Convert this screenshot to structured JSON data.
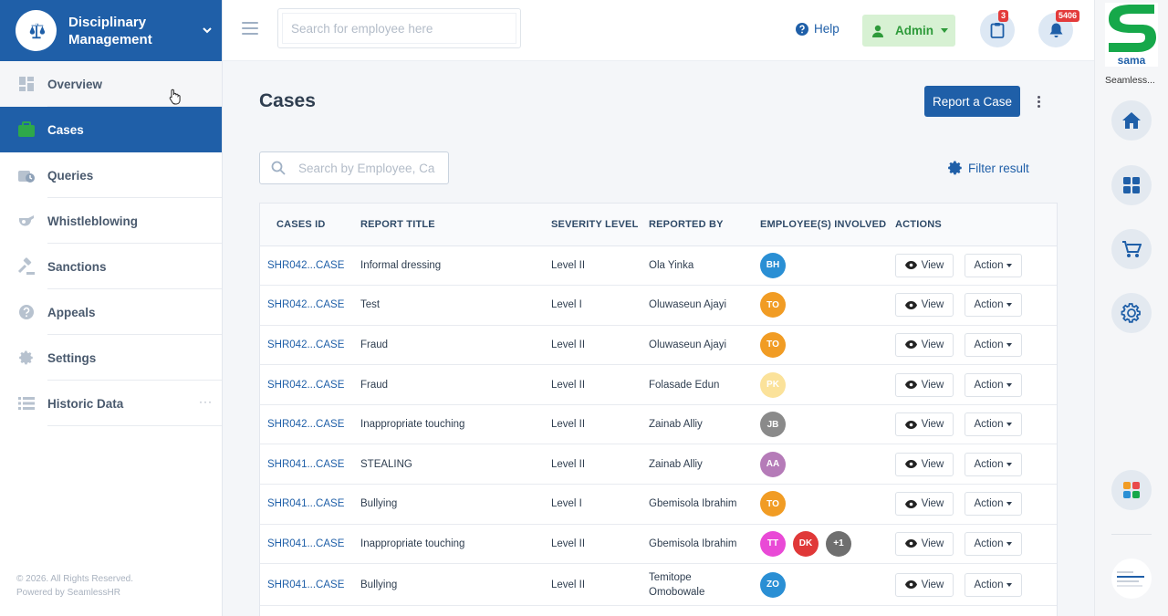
{
  "brand": {
    "title": "Disciplinary Management"
  },
  "nav": [
    {
      "label": "Overview",
      "icon": "dashboard-icon"
    },
    {
      "label": "Cases",
      "icon": "briefcase-icon"
    },
    {
      "label": "Queries",
      "icon": "query-icon"
    },
    {
      "label": "Whistleblowing",
      "icon": "whistle-icon"
    },
    {
      "label": "Sanctions",
      "icon": "gavel-icon"
    },
    {
      "label": "Appeals",
      "icon": "question-icon"
    },
    {
      "label": "Settings",
      "icon": "gear-icon"
    },
    {
      "label": "Historic Data",
      "icon": "list-icon"
    }
  ],
  "footer": {
    "copyright": "© 2026. All Rights Reserved.",
    "powered": "Powered by SeamlessHR"
  },
  "header": {
    "search_placeholder": "Search for employee here",
    "help_label": "Help",
    "admin_label": "Admin",
    "clipboard_badge": "3",
    "notification_badge": "5406"
  },
  "rail": {
    "logo_text": "sama",
    "caption": "Seamless..."
  },
  "page": {
    "title": "Cases",
    "report_label": "Report a Case",
    "search_placeholder": "Search by Employee, Case",
    "filter_label": "Filter result"
  },
  "table": {
    "headers": [
      "Cases ID",
      "Report Title",
      "Severity Level",
      "Reported By",
      "Employee(s) Involved",
      "Actions"
    ],
    "view_label": "View",
    "action_label": "Action",
    "rows": [
      {
        "id": "SHR042...CASE",
        "title": "Informal dressing",
        "severity": "Level II",
        "reporter": "Ola Yinka",
        "employees": [
          {
            "initials": "BH",
            "color": "#2a8fd4"
          }
        ]
      },
      {
        "id": "SHR042...CASE",
        "title": "Test",
        "severity": "Level I",
        "reporter": "Oluwaseun Ajayi",
        "employees": [
          {
            "initials": "TO",
            "color": "#f19c24"
          }
        ]
      },
      {
        "id": "SHR042...CASE",
        "title": "Fraud",
        "severity": "Level II",
        "reporter": "Oluwaseun Ajayi",
        "employees": [
          {
            "initials": "TO",
            "color": "#f19c24"
          }
        ]
      },
      {
        "id": "SHR042...CASE",
        "title": "Fraud",
        "severity": "Level II",
        "reporter": "Folasade Edun",
        "employees": [
          {
            "initials": "PK",
            "color": "#fbe29a"
          }
        ]
      },
      {
        "id": "SHR042...CASE",
        "title": "Inappropriate touching",
        "severity": "Level II",
        "reporter": "Zainab Alliy",
        "employees": [
          {
            "initials": "JB",
            "color": "#8a8a8a"
          }
        ]
      },
      {
        "id": "SHR041...CASE",
        "title": "STEALING",
        "severity": "Level II",
        "reporter": "Zainab Alliy",
        "employees": [
          {
            "initials": "AA",
            "color": "#b57bb8"
          }
        ]
      },
      {
        "id": "SHR041...CASE",
        "title": "Bullying",
        "severity": "Level I",
        "reporter": "Gbemisola Ibrahim",
        "employees": [
          {
            "initials": "TO",
            "color": "#f19c24"
          }
        ]
      },
      {
        "id": "SHR041...CASE",
        "title": "Inappropriate touching",
        "severity": "Level II",
        "reporter": "Gbemisola Ibrahim",
        "employees": [
          {
            "initials": "TT",
            "color": "#e94ad6"
          },
          {
            "initials": "DK",
            "color": "#e03838"
          },
          {
            "initials": "+1",
            "color": "#6f6f6f"
          }
        ]
      },
      {
        "id": "SHR041...CASE",
        "title": "Bullying",
        "severity": "Level II",
        "reporter": "Temitope Omobowale",
        "employees": [
          {
            "initials": "ZO",
            "color": "#2a8fd4"
          }
        ]
      }
    ]
  }
}
